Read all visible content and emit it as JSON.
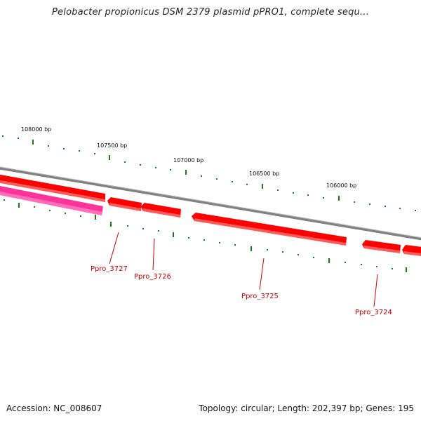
{
  "title": "Pelobacter propionicus DSM 2379 plasmid pPRO1, complete sequ...",
  "footer": {
    "accession": "Accession: NC_008607",
    "summary": "Topology: circular; Length: 202,397 bp; Genes: 195"
  },
  "scale_labels": [
    "108000 bp",
    "107500 bp",
    "107000 bp",
    "106500 bp",
    "106000 bp"
  ],
  "genes": [
    {
      "name": "Ppro_3727"
    },
    {
      "name": "Ppro_3726"
    },
    {
      "name": "Ppro_3725"
    },
    {
      "name": "Ppro_3724"
    }
  ],
  "colors": {
    "backbone": "#808080",
    "gene": "#ff0000",
    "gene_dark": "#cc0000",
    "gene_light": "#ff6666",
    "gene_alt": "#ff3399",
    "tick": "#1a7a1a"
  }
}
